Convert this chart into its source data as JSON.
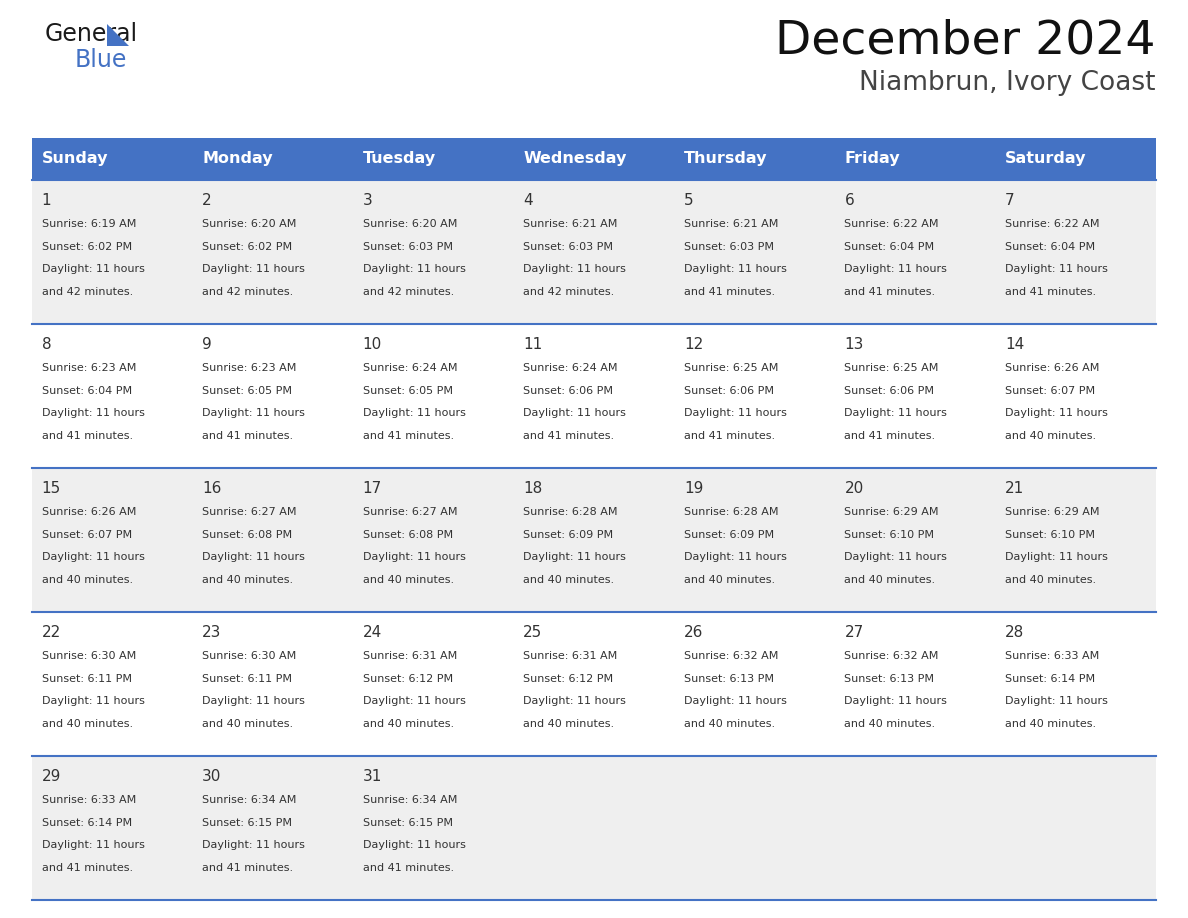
{
  "title": "December 2024",
  "subtitle": "Niambrun, Ivory Coast",
  "header_bg_color": "#4472C4",
  "header_text_color": "#FFFFFF",
  "cell_bg_color_odd": "#EFEFEF",
  "cell_bg_color_even": "#FFFFFF",
  "grid_line_color": "#4472C4",
  "text_color": "#333333",
  "days_of_week": [
    "Sunday",
    "Monday",
    "Tuesday",
    "Wednesday",
    "Thursday",
    "Friday",
    "Saturday"
  ],
  "calendar_data": [
    [
      {
        "day": 1,
        "sunrise": "6:19 AM",
        "sunset": "6:02 PM",
        "daylight_hours": 11,
        "daylight_minutes": 42
      },
      {
        "day": 2,
        "sunrise": "6:20 AM",
        "sunset": "6:02 PM",
        "daylight_hours": 11,
        "daylight_minutes": 42
      },
      {
        "day": 3,
        "sunrise": "6:20 AM",
        "sunset": "6:03 PM",
        "daylight_hours": 11,
        "daylight_minutes": 42
      },
      {
        "day": 4,
        "sunrise": "6:21 AM",
        "sunset": "6:03 PM",
        "daylight_hours": 11,
        "daylight_minutes": 42
      },
      {
        "day": 5,
        "sunrise": "6:21 AM",
        "sunset": "6:03 PM",
        "daylight_hours": 11,
        "daylight_minutes": 41
      },
      {
        "day": 6,
        "sunrise": "6:22 AM",
        "sunset": "6:04 PM",
        "daylight_hours": 11,
        "daylight_minutes": 41
      },
      {
        "day": 7,
        "sunrise": "6:22 AM",
        "sunset": "6:04 PM",
        "daylight_hours": 11,
        "daylight_minutes": 41
      }
    ],
    [
      {
        "day": 8,
        "sunrise": "6:23 AM",
        "sunset": "6:04 PM",
        "daylight_hours": 11,
        "daylight_minutes": 41
      },
      {
        "day": 9,
        "sunrise": "6:23 AM",
        "sunset": "6:05 PM",
        "daylight_hours": 11,
        "daylight_minutes": 41
      },
      {
        "day": 10,
        "sunrise": "6:24 AM",
        "sunset": "6:05 PM",
        "daylight_hours": 11,
        "daylight_minutes": 41
      },
      {
        "day": 11,
        "sunrise": "6:24 AM",
        "sunset": "6:06 PM",
        "daylight_hours": 11,
        "daylight_minutes": 41
      },
      {
        "day": 12,
        "sunrise": "6:25 AM",
        "sunset": "6:06 PM",
        "daylight_hours": 11,
        "daylight_minutes": 41
      },
      {
        "day": 13,
        "sunrise": "6:25 AM",
        "sunset": "6:06 PM",
        "daylight_hours": 11,
        "daylight_minutes": 41
      },
      {
        "day": 14,
        "sunrise": "6:26 AM",
        "sunset": "6:07 PM",
        "daylight_hours": 11,
        "daylight_minutes": 40
      }
    ],
    [
      {
        "day": 15,
        "sunrise": "6:26 AM",
        "sunset": "6:07 PM",
        "daylight_hours": 11,
        "daylight_minutes": 40
      },
      {
        "day": 16,
        "sunrise": "6:27 AM",
        "sunset": "6:08 PM",
        "daylight_hours": 11,
        "daylight_minutes": 40
      },
      {
        "day": 17,
        "sunrise": "6:27 AM",
        "sunset": "6:08 PM",
        "daylight_hours": 11,
        "daylight_minutes": 40
      },
      {
        "day": 18,
        "sunrise": "6:28 AM",
        "sunset": "6:09 PM",
        "daylight_hours": 11,
        "daylight_minutes": 40
      },
      {
        "day": 19,
        "sunrise": "6:28 AM",
        "sunset": "6:09 PM",
        "daylight_hours": 11,
        "daylight_minutes": 40
      },
      {
        "day": 20,
        "sunrise": "6:29 AM",
        "sunset": "6:10 PM",
        "daylight_hours": 11,
        "daylight_minutes": 40
      },
      {
        "day": 21,
        "sunrise": "6:29 AM",
        "sunset": "6:10 PM",
        "daylight_hours": 11,
        "daylight_minutes": 40
      }
    ],
    [
      {
        "day": 22,
        "sunrise": "6:30 AM",
        "sunset": "6:11 PM",
        "daylight_hours": 11,
        "daylight_minutes": 40
      },
      {
        "day": 23,
        "sunrise": "6:30 AM",
        "sunset": "6:11 PM",
        "daylight_hours": 11,
        "daylight_minutes": 40
      },
      {
        "day": 24,
        "sunrise": "6:31 AM",
        "sunset": "6:12 PM",
        "daylight_hours": 11,
        "daylight_minutes": 40
      },
      {
        "day": 25,
        "sunrise": "6:31 AM",
        "sunset": "6:12 PM",
        "daylight_hours": 11,
        "daylight_minutes": 40
      },
      {
        "day": 26,
        "sunrise": "6:32 AM",
        "sunset": "6:13 PM",
        "daylight_hours": 11,
        "daylight_minutes": 40
      },
      {
        "day": 27,
        "sunrise": "6:32 AM",
        "sunset": "6:13 PM",
        "daylight_hours": 11,
        "daylight_minutes": 40
      },
      {
        "day": 28,
        "sunrise": "6:33 AM",
        "sunset": "6:14 PM",
        "daylight_hours": 11,
        "daylight_minutes": 40
      }
    ],
    [
      {
        "day": 29,
        "sunrise": "6:33 AM",
        "sunset": "6:14 PM",
        "daylight_hours": 11,
        "daylight_minutes": 41
      },
      {
        "day": 30,
        "sunrise": "6:34 AM",
        "sunset": "6:15 PM",
        "daylight_hours": 11,
        "daylight_minutes": 41
      },
      {
        "day": 31,
        "sunrise": "6:34 AM",
        "sunset": "6:15 PM",
        "daylight_hours": 11,
        "daylight_minutes": 41
      },
      null,
      null,
      null,
      null
    ]
  ],
  "logo_text_general": "General",
  "logo_text_blue": "Blue",
  "fig_width": 11.88,
  "fig_height": 9.18,
  "dpi": 100
}
